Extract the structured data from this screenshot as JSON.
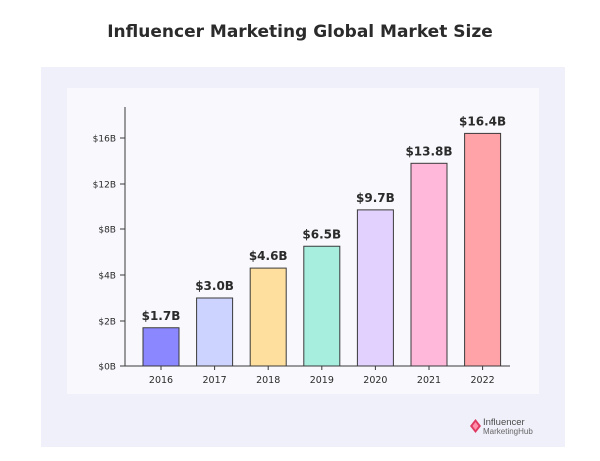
{
  "page": {
    "title": "Influencer Marketing Global Market Size"
  },
  "logo": {
    "line1": "Influencer",
    "line2": "MarketingHub",
    "icon": "diamond-logo-icon"
  },
  "colors": {
    "axis": "#3a3a3a",
    "bar_stroke": "#3a3a3a",
    "text": "#2b2b2b",
    "logo_accent": "#e03a62"
  },
  "chart_data": {
    "type": "bar",
    "title": "Influencer Marketing Global Market Size",
    "xlabel": "",
    "ylabel": "",
    "ylim": [
      0,
      18
    ],
    "grid": false,
    "categories": [
      "2016",
      "2017",
      "2018",
      "2019",
      "2020",
      "2021",
      "2022"
    ],
    "values": [
      1.7,
      3.0,
      4.6,
      6.5,
      9.7,
      13.8,
      16.4
    ],
    "data_labels": [
      "$1.7B",
      "$3.0B",
      "$4.6B",
      "$6.5B",
      "$9.7B",
      "$13.8B",
      "$16.4B"
    ],
    "bar_colors": [
      "#8b87ff",
      "#cdd3ff",
      "#ffdf9e",
      "#a7eedf",
      "#e2d1ff",
      "#ffb8d9",
      "#ffa3a8"
    ],
    "y_ticks": [
      0,
      2,
      4,
      8,
      12,
      16
    ],
    "y_tick_labels": [
      "$0B",
      "$2B",
      "$4B",
      "$8B",
      "$12B",
      "$16B"
    ]
  }
}
